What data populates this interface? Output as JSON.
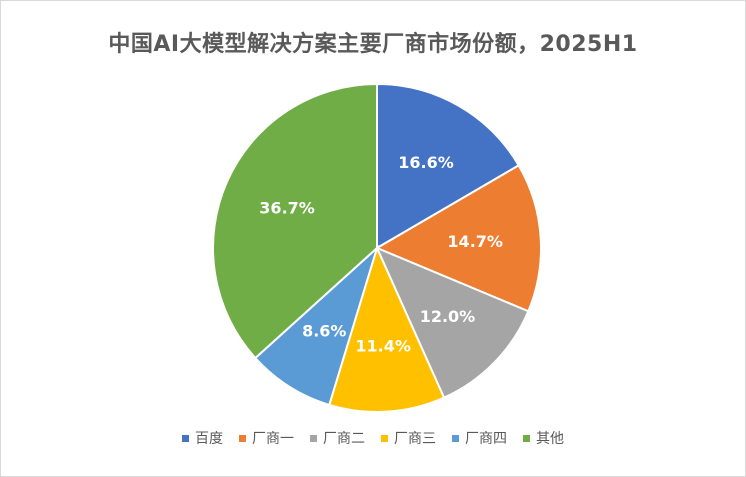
{
  "chart_data": {
    "type": "pie",
    "title": "中国AI大模型解决方案主要厂商市场份额，2025H1",
    "categories": [
      "百度",
      "厂商一",
      "厂商二",
      "厂商三",
      "厂商四",
      "其他"
    ],
    "values": [
      16.6,
      14.7,
      12.0,
      11.4,
      8.6,
      36.7
    ],
    "labels": [
      "16.6%",
      "14.7%",
      "12.0%",
      "11.4%",
      "8.6%",
      "36.7%"
    ],
    "colors": [
      "#4472C4",
      "#ED7D31",
      "#A5A5A5",
      "#FFC000",
      "#5B9BD5",
      "#70AD47"
    ],
    "legend_position": "bottom"
  }
}
